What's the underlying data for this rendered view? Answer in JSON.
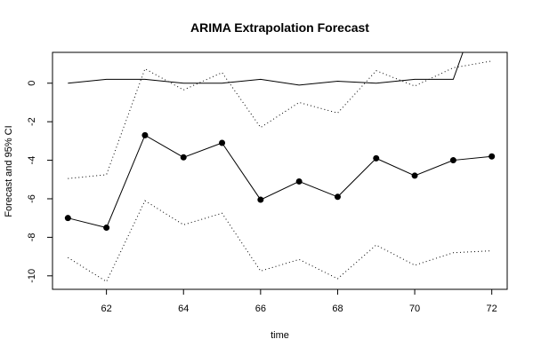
{
  "chart_data": {
    "type": "line",
    "title": "ARIMA Extrapolation Forecast",
    "xlabel": "time",
    "ylabel": "Forecast and 95% CI",
    "xlim": [
      60.6,
      72.4
    ],
    "ylim": [
      -10.7,
      1.6
    ],
    "x_ticks": [
      62,
      64,
      66,
      68,
      70,
      72
    ],
    "y_ticks": [
      0,
      -2,
      -4,
      -6,
      -8,
      -10
    ],
    "grid": false,
    "series": [
      {
        "style": "solid-with-points",
        "x": [
          61,
          62,
          63,
          64,
          65,
          66,
          67,
          68,
          69,
          70,
          71,
          72
        ],
        "values": [
          -7.0,
          -7.5,
          -2.7,
          -3.85,
          -3.1,
          -6.05,
          -5.1,
          -5.9,
          -3.9,
          -4.8,
          -4.0,
          -3.8
        ]
      },
      {
        "style": "dotted",
        "x": [
          61,
          62,
          63,
          64,
          65,
          66,
          67,
          68,
          69,
          70,
          71,
          72
        ],
        "values": [
          -4.95,
          -4.75,
          0.75,
          -0.35,
          0.55,
          -2.3,
          -1.0,
          -1.55,
          0.65,
          -0.15,
          0.8,
          1.15
        ]
      },
      {
        "style": "dotted",
        "x": [
          61,
          62,
          63,
          64,
          65,
          66,
          67,
          68,
          69,
          70,
          71,
          72
        ],
        "values": [
          -9.05,
          -10.3,
          -6.1,
          -7.35,
          -6.75,
          -9.75,
          -9.15,
          -10.15,
          -8.4,
          -9.45,
          -8.8,
          -8.7
        ]
      },
      {
        "style": "solid",
        "x": [
          61,
          62,
          63,
          64,
          65,
          66,
          67,
          68,
          69,
          70,
          71,
          71.25
        ],
        "values": [
          0.0,
          0.2,
          0.2,
          0.0,
          0.0,
          0.2,
          -0.1,
          0.1,
          0.0,
          0.2,
          0.2,
          1.6
        ]
      }
    ]
  }
}
